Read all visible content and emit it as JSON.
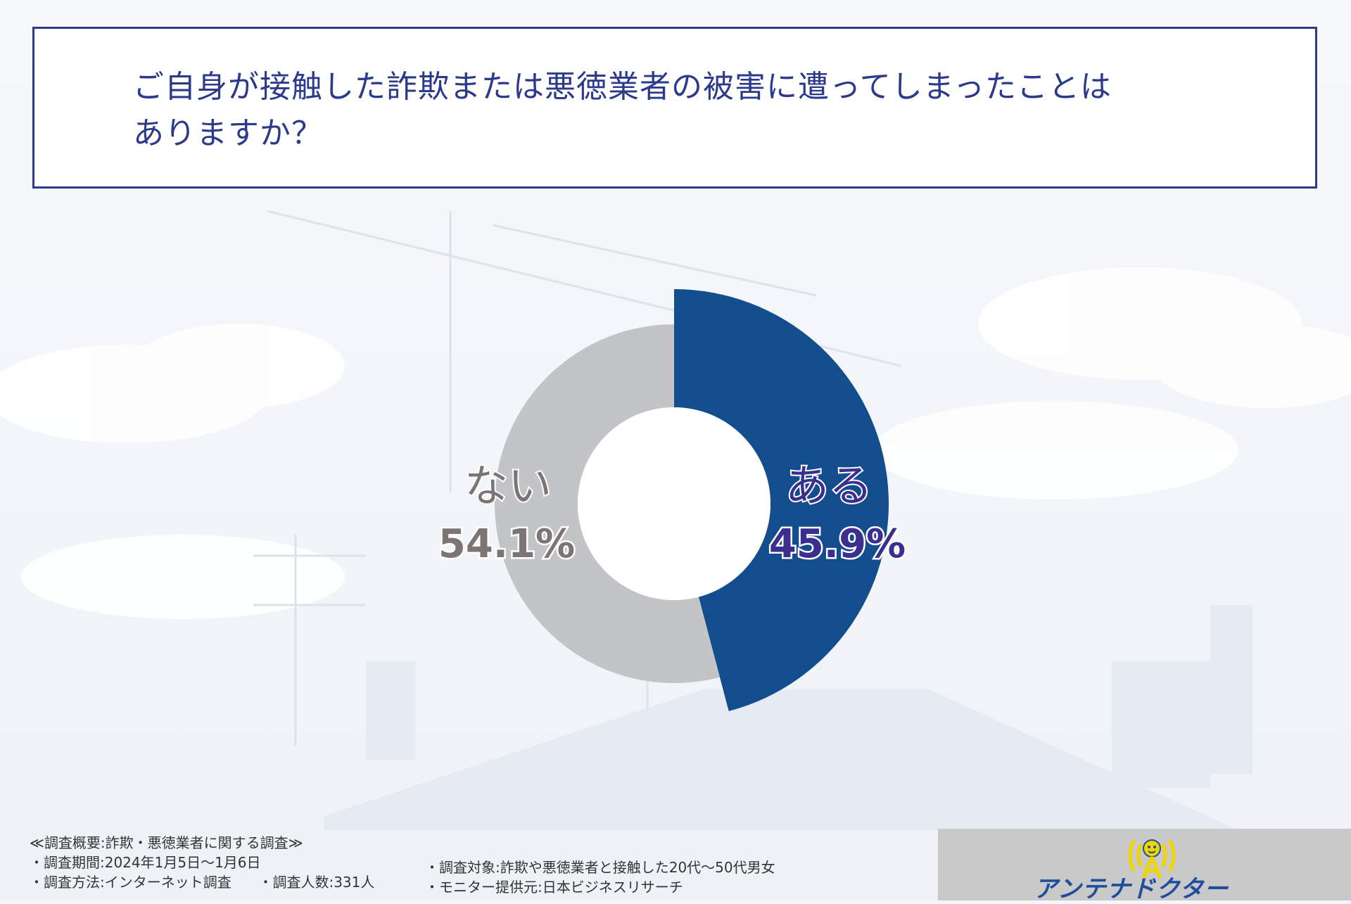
{
  "question": {
    "text": "ご自身が接触した詐欺または悪徳業者の被害に遭ってしまったことはありますか？"
  },
  "chart_data": {
    "type": "pie",
    "title": "ご自身が接触した詐欺または悪徳業者の被害に遭ってしまったことはありますか？",
    "categories": [
      "ある",
      "ない"
    ],
    "values": [
      45.9,
      54.1
    ],
    "value_labels": [
      "45.9%",
      "54.1%"
    ],
    "colors": [
      "#134d8e",
      "#c3c4c5"
    ],
    "label_colors": [
      "#3a2f8f",
      "#7d7573"
    ],
    "donut": true,
    "start": "top, clockwise"
  },
  "footer": {
    "survey_title": "≪調査概要:詐欺・悪徳業者に関する調査≫",
    "period": "・調査期間:2024年1月5日～1月6日",
    "method": "・調査方法:インターネット調査",
    "respondents": "・調査人数:331人",
    "target": "・調査対象:詐欺や悪徳業者と接触した20代～50代男女",
    "provider": "・モニター提供元:日本ビジネスリサーチ"
  },
  "logo": {
    "text": "アンテナドクター",
    "icon": "antenna-tower-icon"
  }
}
